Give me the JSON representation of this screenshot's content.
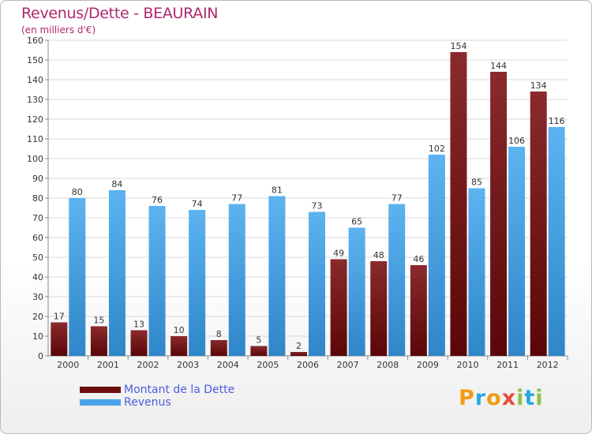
{
  "title": "Revenus/Dette - BEAURAIN",
  "subtitle": "(en milliers d'€)",
  "logo": {
    "letters": [
      "P",
      "r",
      "o",
      "x",
      "i",
      "t",
      "i"
    ],
    "colors": [
      "#f39c12",
      "#27a9e1",
      "#f39c12",
      "#e74c3c",
      "#8bc34a",
      "#27a9e1",
      "#8bc34a"
    ]
  },
  "legend": [
    {
      "label": "Montant de la Dette",
      "color": "#6b0f10"
    },
    {
      "label": "Revenus",
      "color": "#4aa3e8"
    }
  ],
  "chart_data": {
    "type": "bar",
    "categories": [
      "2000",
      "2001",
      "2002",
      "2003",
      "2004",
      "2005",
      "2006",
      "2007",
      "2008",
      "2009",
      "2010",
      "2011",
      "2012"
    ],
    "series": [
      {
        "name": "Montant de la Dette",
        "color": "#7a1a1c",
        "values": [
          17,
          15,
          13,
          10,
          8,
          5,
          2,
          49,
          48,
          46,
          154,
          144,
          134
        ]
      },
      {
        "name": "Revenus",
        "color": "#4aa3e8",
        "values": [
          80,
          84,
          76,
          74,
          77,
          81,
          73,
          65,
          77,
          102,
          85,
          106,
          116
        ]
      }
    ],
    "ylim": [
      0,
      160
    ],
    "yticks": [
      0,
      10,
      20,
      30,
      40,
      50,
      60,
      70,
      80,
      90,
      100,
      110,
      120,
      130,
      140,
      150,
      160
    ],
    "grid": true,
    "legend_position": "bottom-left"
  }
}
